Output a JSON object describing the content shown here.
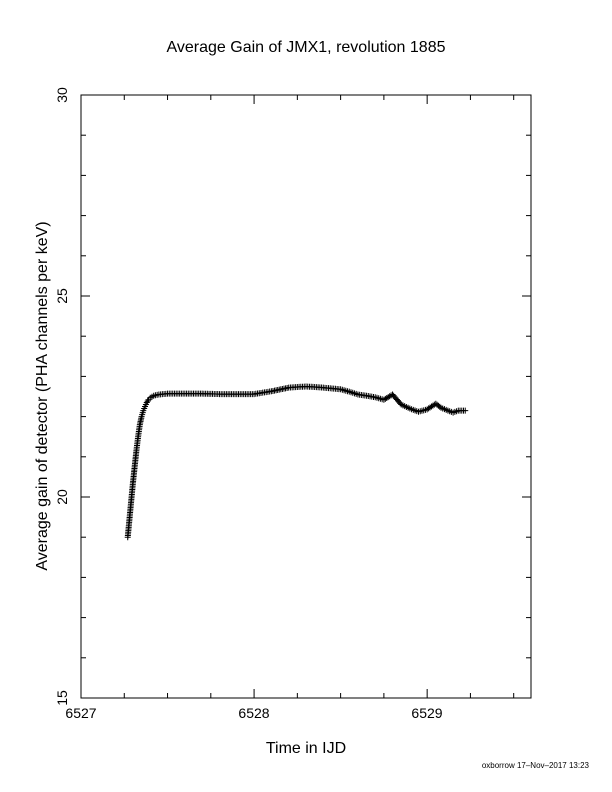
{
  "chart_data": {
    "type": "scatter",
    "title": "Average Gain of JMX1, revolution 1885",
    "xlabel": "Time in IJD",
    "ylabel": "Average gain of detector (PHA channels per keV)",
    "xlim": [
      6527,
      6529.6
    ],
    "ylim": [
      15,
      30
    ],
    "x_ticks": [
      "6527",
      "6528",
      "6529"
    ],
    "y_ticks": [
      "15",
      "20",
      "25",
      "30"
    ],
    "grid": false,
    "legend": "none",
    "marker": "plus",
    "marker_color": "#000000",
    "footer": "oxborrow 17–Nov–2017 13:23",
    "series": [
      {
        "x": [
          6527.27,
          6527.28,
          6527.29,
          6527.3,
          6527.31,
          6527.32,
          6527.33,
          6527.34,
          6527.35,
          6527.36,
          6527.37,
          6527.38,
          6527.39,
          6527.4,
          6527.42,
          6527.45,
          6527.5,
          6527.6,
          6527.7,
          6527.8,
          6527.9,
          6528.0,
          6528.1,
          6528.2,
          6528.3,
          6528.4,
          6528.5,
          6528.55,
          6528.6,
          6528.65,
          6528.7,
          6528.75,
          6528.8,
          6528.85,
          6528.9,
          6528.95,
          6529.0,
          6529.05,
          6529.08,
          6529.12,
          6529.15,
          6529.18,
          6529.22
        ],
        "y": [
          19.0,
          19.45,
          19.9,
          20.35,
          20.75,
          21.15,
          21.5,
          21.8,
          22.0,
          22.15,
          22.25,
          22.35,
          22.42,
          22.47,
          22.52,
          22.55,
          22.57,
          22.57,
          22.57,
          22.56,
          22.56,
          22.56,
          22.63,
          22.72,
          22.75,
          22.72,
          22.68,
          22.62,
          22.55,
          22.52,
          22.48,
          22.42,
          22.55,
          22.3,
          22.2,
          22.12,
          22.18,
          22.32,
          22.22,
          22.15,
          22.1,
          22.15,
          22.15
        ]
      }
    ]
  }
}
